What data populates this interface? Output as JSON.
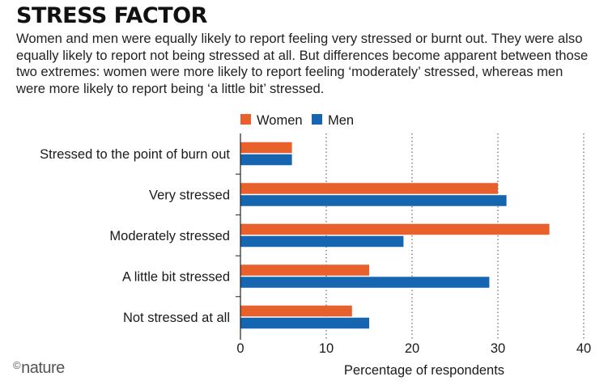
{
  "header": {
    "title": "STRESS FACTOR",
    "subtitle": "Women and men were equally likely to report feeling very stressed or burnt out. They were also equally likely to report not being stressed at all. But differences become apparent between those two extremes: women were more likely to report feeling ‘moderately’ stressed, whereas men were more likely to report being ‘a little bit’ stressed."
  },
  "footer": {
    "brand_symbol": "©",
    "brand_name": "nature"
  },
  "chart_data": {
    "type": "bar",
    "orientation": "horizontal",
    "categories": [
      "Stressed to the point of burn out",
      "Very stressed",
      "Moderately stressed",
      "A little bit stressed",
      "Not stressed at all"
    ],
    "series": [
      {
        "name": "Women",
        "color": "#e8612c",
        "values": [
          6,
          30,
          36,
          15,
          13
        ]
      },
      {
        "name": "Men",
        "color": "#1565b0",
        "values": [
          6,
          31,
          19,
          29,
          15
        ]
      }
    ],
    "xlabel": "Percentage of respondents",
    "xlim": [
      0,
      40
    ],
    "xticks": [
      0,
      10,
      20,
      30,
      40
    ],
    "grid": "dotted vertical",
    "legend_position": "top"
  }
}
